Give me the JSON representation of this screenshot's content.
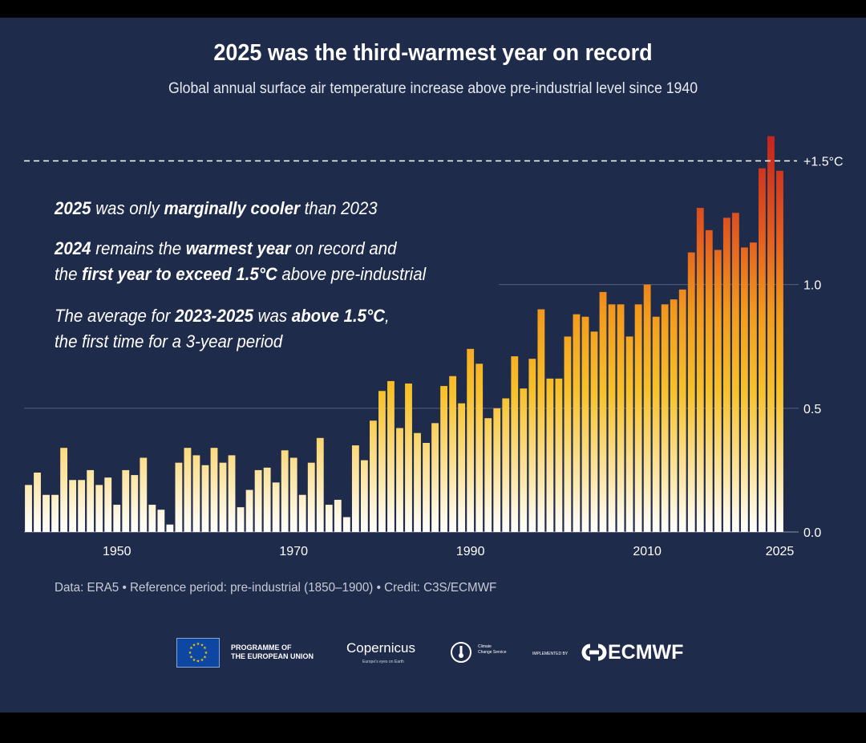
{
  "title": "2025 was the third-warmest year on record",
  "subtitle": "Global annual surface air temperature increase above pre-industrial level since 1940",
  "annotations": {
    "line1": {
      "y1": "2025",
      "t1": " was only ",
      "b1": "marginally cooler",
      "t2": " than 2023"
    },
    "line2": {
      "y1": "2024",
      "t1": " remains the ",
      "b1": "warmest year",
      "t2": " on record and"
    },
    "line3": {
      "t1": "the ",
      "b1": "first year to exceed 1.5°C",
      "t2": " above pre-industrial"
    },
    "line4": {
      "t1": "The average for ",
      "b1": "2023-2025",
      "t2": " was ",
      "b2": "above 1.5°C",
      "t3": ","
    },
    "line5": {
      "t1": "the first time for a 3-year period"
    }
  },
  "source": "Data: ERA5 • Reference period: pre-industrial (1850–1900) • Credit: C3S/ECMWF",
  "logos": {
    "eu_line1": "PROGRAMME OF",
    "eu_line2": "THE EUROPEAN UNION",
    "copernicus": "Copernicus",
    "copernicus_tagline": "Europe's eyes on Earth",
    "c3s_line1": "Climate",
    "c3s_line2": "Change Service",
    "implemented_by": "IMPLEMENTED BY",
    "ecmwf": "ECMWF"
  },
  "colors": {
    "background": "#1f2b4b",
    "bar_low": "#ffffff",
    "bar_mid": "#f5b21b",
    "bar_high": "#c8251f",
    "text": "#ffffff"
  },
  "chart_data": {
    "type": "bar",
    "title": "2025 was the third-warmest year on record",
    "subtitle": "Global annual surface air temperature increase above pre-industrial level since 1940",
    "xlabel": "",
    "ylabel": "°C",
    "ylim": [
      0,
      1.65
    ],
    "yticks": [
      {
        "value": 0.0,
        "label": "0.0"
      },
      {
        "value": 0.5,
        "label": "0.5"
      },
      {
        "value": 1.0,
        "label": "1.0"
      },
      {
        "value": 1.5,
        "label": "+1.5°C"
      }
    ],
    "xticks": [
      {
        "year": 1950,
        "label": "1950"
      },
      {
        "year": 1970,
        "label": "1970"
      },
      {
        "year": 1990,
        "label": "1990"
      },
      {
        "year": 2010,
        "label": "2010"
      },
      {
        "year": 2025,
        "label": "2025"
      }
    ],
    "reference_line": {
      "value": 1.5,
      "style": "dashed"
    },
    "grid": true,
    "x_start": 1940,
    "x_end": 2025,
    "values": [
      0.19,
      0.24,
      0.15,
      0.15,
      0.34,
      0.21,
      0.21,
      0.25,
      0.19,
      0.22,
      0.11,
      0.25,
      0.23,
      0.3,
      0.11,
      0.09,
      0.03,
      0.28,
      0.34,
      0.31,
      0.27,
      0.34,
      0.28,
      0.31,
      0.1,
      0.17,
      0.25,
      0.26,
      0.2,
      0.33,
      0.3,
      0.15,
      0.28,
      0.38,
      0.11,
      0.13,
      0.06,
      0.35,
      0.29,
      0.45,
      0.57,
      0.61,
      0.42,
      0.6,
      0.4,
      0.36,
      0.44,
      0.59,
      0.63,
      0.52,
      0.74,
      0.68,
      0.46,
      0.5,
      0.54,
      0.71,
      0.58,
      0.7,
      0.9,
      0.62,
      0.62,
      0.79,
      0.88,
      0.87,
      0.81,
      0.97,
      0.92,
      0.92,
      0.79,
      0.92,
      1.0,
      0.87,
      0.92,
      0.94,
      0.98,
      1.13,
      1.31,
      1.22,
      1.14,
      1.27,
      1.29,
      1.15,
      1.17,
      1.47,
      1.6,
      1.46
    ]
  }
}
